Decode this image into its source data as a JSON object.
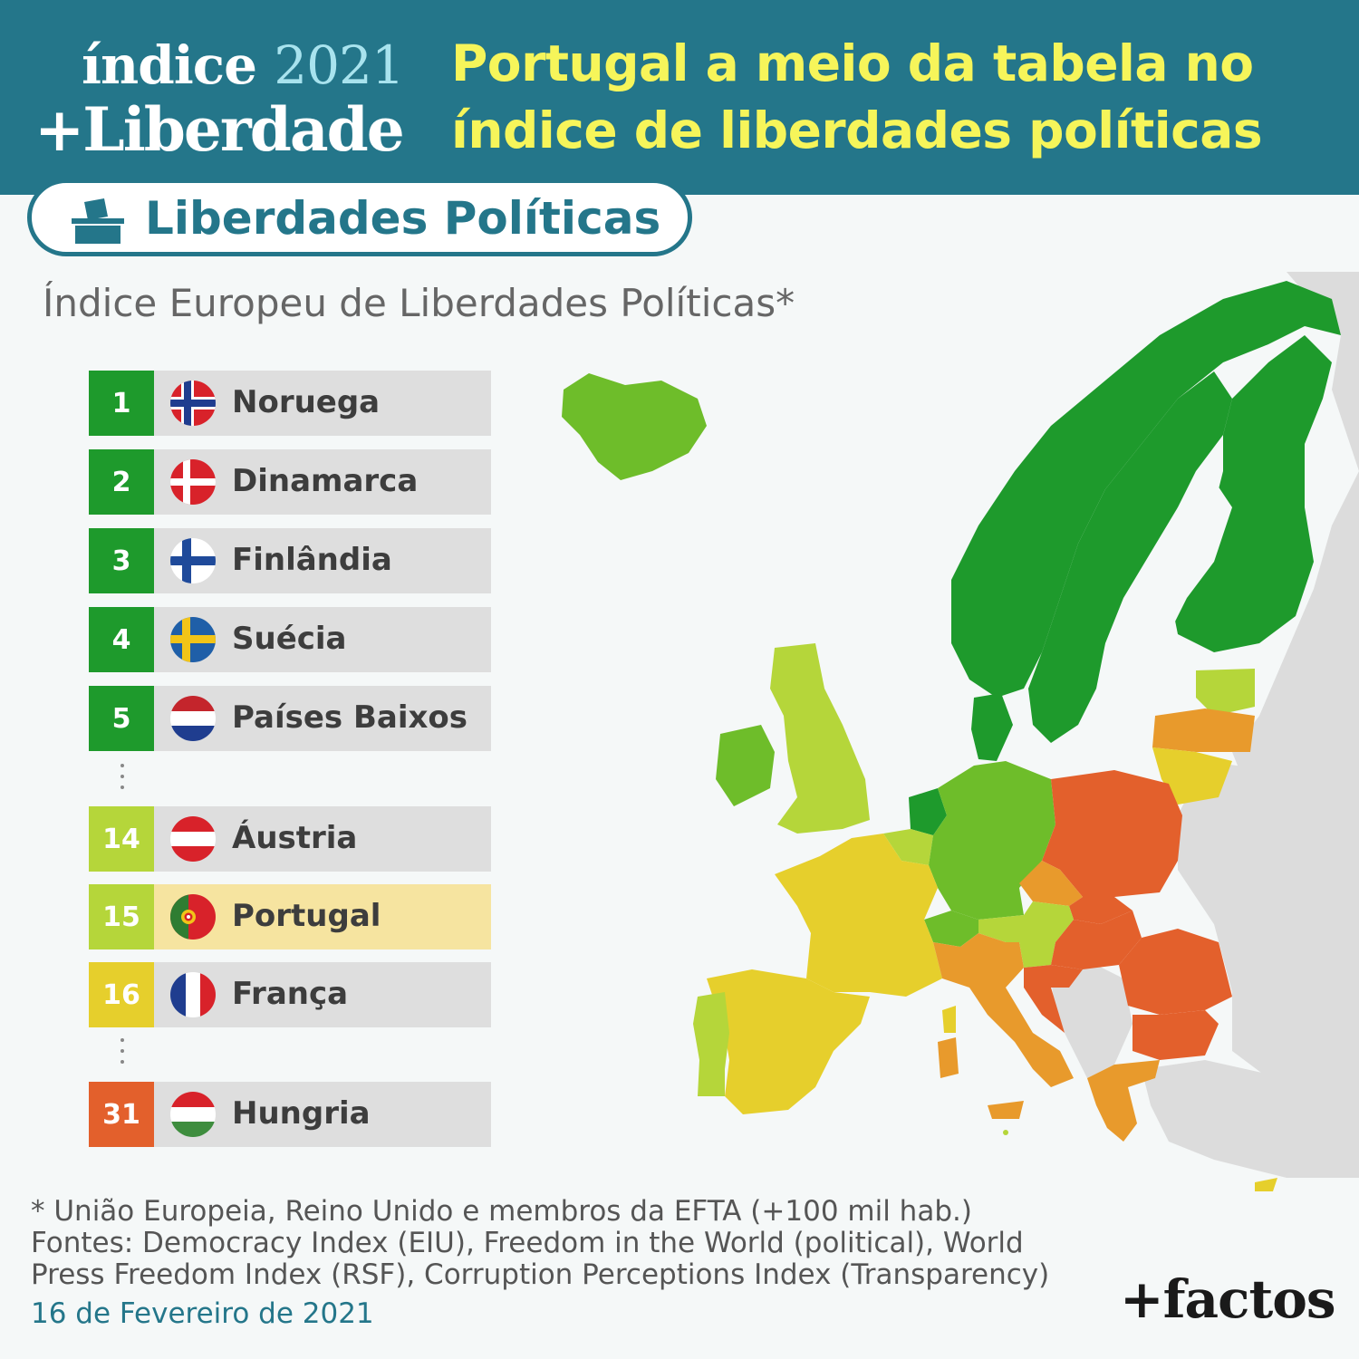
{
  "header": {
    "logo_word": "índice",
    "logo_year": "2021",
    "logo_line2": "+Liberdade",
    "headline_line1": "Portugal a meio da tabela no",
    "headline_line2": "índice de liberdades políticas"
  },
  "badge": {
    "icon": "ballot-box-icon",
    "label": "Liberdades Políticas"
  },
  "subtitle": "Índice Europeu de Liberdades Políticas*",
  "ranking": [
    {
      "rank": "1",
      "country": "Noruega",
      "flag": "norway-flag-icon",
      "color": "#1e9a2c"
    },
    {
      "rank": "2",
      "country": "Dinamarca",
      "flag": "denmark-flag-icon",
      "color": "#1e9a2c"
    },
    {
      "rank": "3",
      "country": "Finlândia",
      "flag": "finland-flag-icon",
      "color": "#1e9a2c"
    },
    {
      "rank": "4",
      "country": "Suécia",
      "flag": "sweden-flag-icon",
      "color": "#1e9a2c"
    },
    {
      "rank": "5",
      "country": "Países Baixos",
      "flag": "netherlands-flag-icon",
      "color": "#1e9a2c"
    },
    {
      "rank": "14",
      "country": "Áustria",
      "flag": "austria-flag-icon",
      "color": "#b5d63a"
    },
    {
      "rank": "15",
      "country": "Portugal",
      "flag": "portugal-flag-icon",
      "color": "#b5d63a",
      "highlight": "#f6e4a0"
    },
    {
      "rank": "16",
      "country": "França",
      "flag": "france-flag-icon",
      "color": "#e6cf2c"
    },
    {
      "rank": "31",
      "country": "Hungria",
      "flag": "hungary-flag-icon",
      "color": "#e3602c"
    }
  ],
  "map_colors": {
    "dark_green": "#1e9a2c",
    "green": "#6ebd2a",
    "light_green": "#b5d63a",
    "yellow": "#e6cf2c",
    "orange": "#e89a2c",
    "red_orange": "#e3602c",
    "no_data": "#dcdcdc"
  },
  "footnote": {
    "line1": "* União Europeia, Reino Unido e membros da EFTA (+100 mil hab.)",
    "line2": "Fontes: Democracy Index (EIU), Freedom in the World (political), World",
    "line3": "Press Freedom Index (RSF), Corruption Perceptions Index (Transparency)"
  },
  "date": "16 de Fevereiro de 2021",
  "brand": "+factos"
}
